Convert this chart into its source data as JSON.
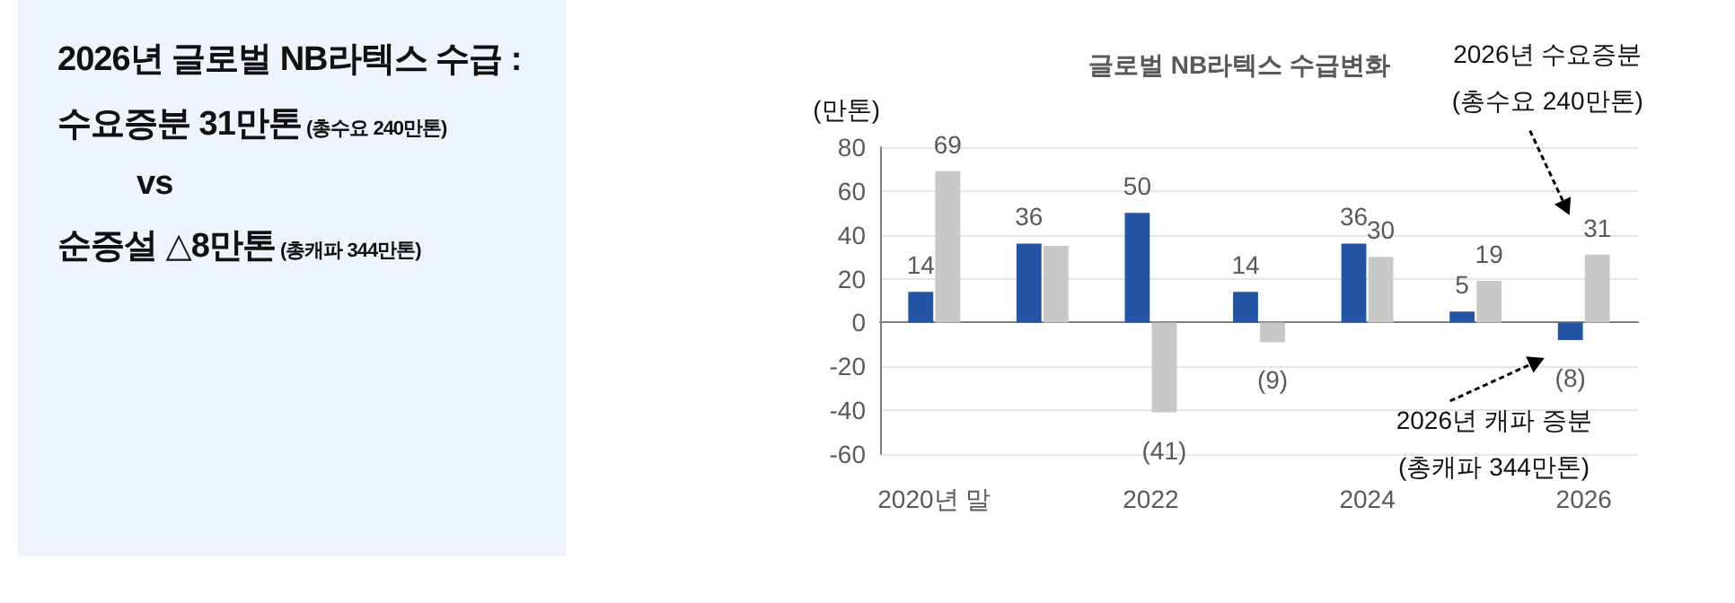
{
  "chart_data": [
    {
      "type": "other",
      "title": "2026년 글로벌 NB라텍스 수급 :",
      "annotations": [
        "수요증분 31만톤",
        "(총수요 240만톤)",
        "vs",
        "순증설 △8만톤",
        "(총캐파 344만톤)"
      ]
    },
    {
      "type": "bar",
      "title": "글로벌 NB라텍스 수급변화",
      "ylabel": "(만톤)",
      "categories": [
        "2020년 말",
        null,
        "2022",
        null,
        "2024",
        null,
        "2026"
      ],
      "series": [
        {
          "color": "#2455a4",
          "values": [
            14,
            36,
            50,
            14,
            36,
            5,
            -8
          ],
          "value_labels": [
            "14",
            "36",
            "50",
            "14",
            "36",
            "5",
            "(8)"
          ]
        },
        {
          "color": "#c8c8c8",
          "values": [
            69,
            35,
            -41,
            -9,
            30,
            19,
            31
          ],
          "value_labels": [
            "69",
            null,
            "(41)",
            "(9)",
            "30",
            "19",
            "31"
          ]
        }
      ],
      "ylim": [
        -60,
        80
      ],
      "yticks": [
        -60,
        -40,
        -20,
        0,
        20,
        40,
        60,
        80
      ],
      "grid": "y",
      "annotations": [
        "2026년 수요증분\n(총수요 240만톤)",
        "2026년 캐파 증분\n(총캐파  344만톤)"
      ]
    }
  ]
}
